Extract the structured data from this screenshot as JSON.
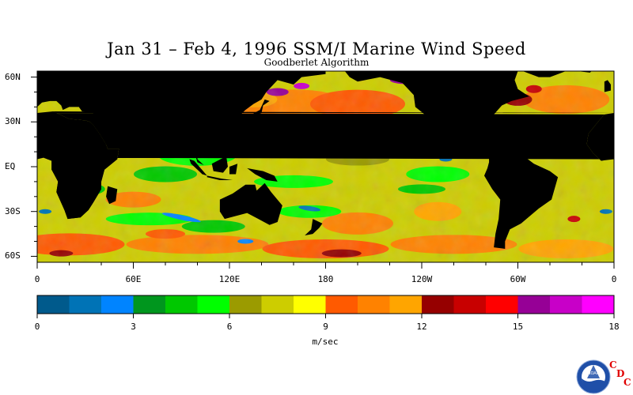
{
  "title": "Jan 31 – Feb 4, 1996 SSM/I Marine Wind Speed",
  "subtitle": "Goodberlet Algorithm",
  "lat_labels": [
    "60N",
    "30N",
    "EQ",
    "30S",
    "60S"
  ],
  "lat_values": [
    60,
    30,
    0,
    -30,
    -60
  ],
  "lon_labels": [
    "0",
    "60E",
    "120E",
    "180",
    "120W",
    "60W",
    "0"
  ],
  "lon_values": [
    0,
    60,
    120,
    180,
    240,
    300,
    360
  ],
  "colorbar": {
    "tick_labels": [
      "0",
      "3",
      "6",
      "9",
      "12",
      "15",
      "18"
    ],
    "tick_values": [
      0,
      3,
      6,
      9,
      12,
      15,
      18
    ],
    "min": 0,
    "max": 18,
    "step": 1,
    "colors": [
      "#005a8c",
      "#0073b6",
      "#0084ff",
      "#00961e",
      "#00c800",
      "#00ff00",
      "#9b9b00",
      "#cdcd00",
      "#ffff00",
      "#ff5a00",
      "#ff8200",
      "#ffa500",
      "#960000",
      "#c80000",
      "#ff0000",
      "#960096",
      "#c800c8",
      "#ff00ff"
    ],
    "units": "m/sec"
  },
  "land_color": "#000000",
  "logo": {
    "letters": [
      "C",
      "D",
      "C"
    ],
    "agency": "NOAA"
  }
}
